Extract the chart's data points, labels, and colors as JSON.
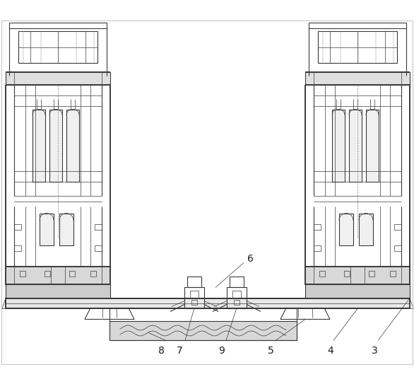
{
  "bg_color": "#ffffff",
  "line_color": "#3a3a3a",
  "lw_thin": 0.5,
  "lw_med": 0.8,
  "lw_thick": 1.4,
  "fig_width": 5.86,
  "fig_height": 5.43,
  "dpi": 100,
  "label_fontsize": 10,
  "label_color": "#1a1a1a"
}
